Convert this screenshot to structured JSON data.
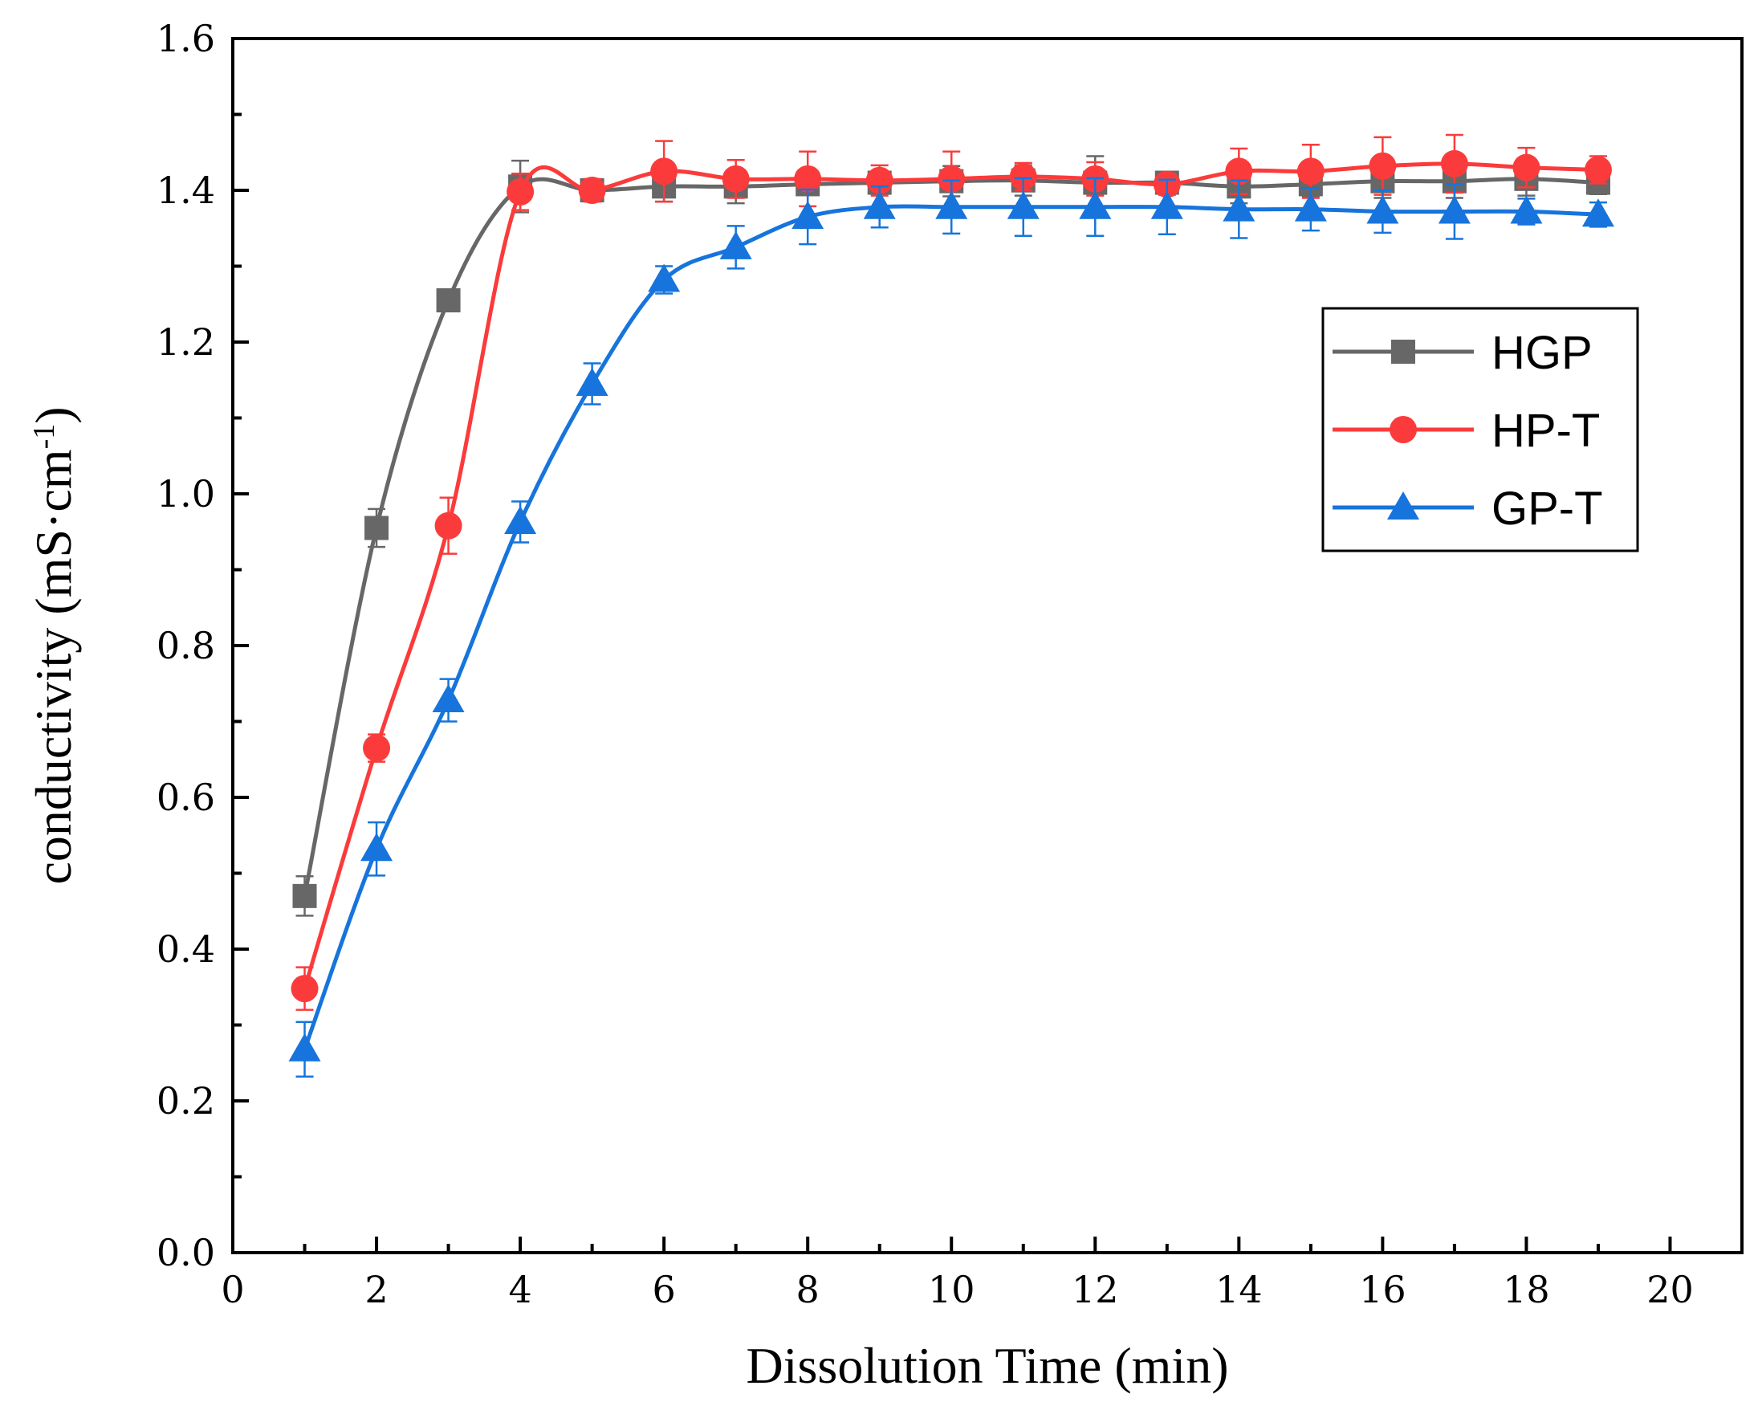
{
  "chart_data": {
    "type": "line",
    "title": "",
    "xlabel": "Dissolution Time (min)",
    "ylabel_main": "conductivity (mS·cm",
    "ylabel_sup": "-1",
    "ylabel_close": ")",
    "xlim": [
      0,
      21
    ],
    "ylim": [
      0,
      1.6
    ],
    "xticks": [
      0,
      2,
      4,
      6,
      8,
      10,
      12,
      14,
      16,
      18,
      20
    ],
    "xtick_labels": [
      "0",
      "2",
      "4",
      "6",
      "8",
      "10",
      "12",
      "14",
      "16",
      "18",
      "20"
    ],
    "yticks": [
      0.0,
      0.2,
      0.4,
      0.6,
      0.8,
      1.0,
      1.2,
      1.4,
      1.6
    ],
    "ytick_labels": [
      "0.0",
      "0.2",
      "0.4",
      "0.6",
      "0.8",
      "1.0",
      "1.2",
      "1.4",
      "1.6"
    ],
    "legend_position": "right",
    "x": [
      1,
      2,
      3,
      4,
      5,
      6,
      7,
      8,
      9,
      10,
      11,
      12,
      13,
      14,
      15,
      16,
      17,
      18,
      19
    ],
    "series": [
      {
        "name": "HGP",
        "color": "#676767",
        "marker": "square",
        "values": [
          0.47,
          0.955,
          1.255,
          1.405,
          1.4,
          1.405,
          1.405,
          1.408,
          1.41,
          1.412,
          1.413,
          1.41,
          1.41,
          1.405,
          1.408,
          1.412,
          1.412,
          1.415,
          1.41
        ],
        "errors": [
          0.026,
          0.025,
          0.012,
          0.034,
          0.012,
          0.02,
          0.022,
          0.012,
          0.014,
          0.02,
          0.02,
          0.035,
          0.012,
          0.022,
          0.016,
          0.022,
          0.022,
          0.022,
          0.015
        ]
      },
      {
        "name": "HP-T",
        "color": "#fb3b3b",
        "marker": "circle",
        "values": [
          0.348,
          0.665,
          0.958,
          1.398,
          1.4,
          1.425,
          1.415,
          1.415,
          1.413,
          1.415,
          1.418,
          1.415,
          1.408,
          1.425,
          1.425,
          1.432,
          1.435,
          1.43,
          1.427
        ],
        "errors": [
          0.028,
          0.018,
          0.037,
          0.024,
          0.015,
          0.04,
          0.025,
          0.036,
          0.02,
          0.036,
          0.018,
          0.022,
          0.014,
          0.03,
          0.035,
          0.038,
          0.038,
          0.026,
          0.018
        ]
      },
      {
        "name": "GP-T",
        "color": "#1674dc",
        "marker": "triangle",
        "values": [
          0.268,
          0.532,
          0.728,
          0.963,
          1.145,
          1.282,
          1.325,
          1.365,
          1.378,
          1.378,
          1.378,
          1.378,
          1.378,
          1.375,
          1.375,
          1.372,
          1.372,
          1.372,
          1.368
        ],
        "errors": [
          0.036,
          0.035,
          0.028,
          0.027,
          0.027,
          0.018,
          0.028,
          0.036,
          0.027,
          0.035,
          0.038,
          0.038,
          0.036,
          0.038,
          0.028,
          0.028,
          0.036,
          0.017,
          0.016
        ]
      }
    ]
  }
}
